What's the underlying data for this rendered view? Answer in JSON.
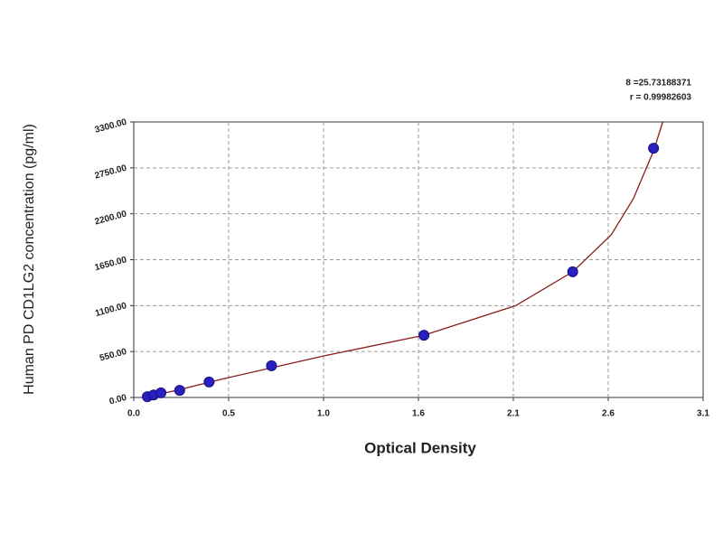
{
  "chart_data": {
    "type": "scatter",
    "x_label": "Optical Density",
    "y_label": "Human PD CD1LG2 concentration (pg/ml)",
    "annotations": [
      "8 =25.73188371",
      "r = 0.99982603"
    ],
    "xlim": [
      0,
      3.1
    ],
    "ylim": [
      0,
      3300
    ],
    "xticks": [
      {
        "value": 0,
        "label": "0.0"
      },
      {
        "value": 0.5167,
        "label": "0.5"
      },
      {
        "value": 1.0333,
        "label": "1.0"
      },
      {
        "value": 1.55,
        "label": "1.6"
      },
      {
        "value": 2.0667,
        "label": "2.1"
      },
      {
        "value": 2.5833,
        "label": "2.6"
      },
      {
        "value": 3.1,
        "label": "3.1"
      }
    ],
    "yticks": [
      {
        "value": 0,
        "label": "0.00"
      },
      {
        "value": 550,
        "label": "550.00"
      },
      {
        "value": 1100,
        "label": "1100.00"
      },
      {
        "value": 1650,
        "label": "1650.00"
      },
      {
        "value": 2200,
        "label": "2200.00"
      },
      {
        "value": 2750,
        "label": "2750.00"
      },
      {
        "value": 3300,
        "label": "3300.00"
      }
    ],
    "grid": true,
    "points": {
      "color": "#2a1fc0",
      "x": [
        0.074,
        0.108,
        0.148,
        0.25,
        0.41,
        0.75,
        1.58,
        2.39,
        2.83
      ],
      "y": [
        10,
        30,
        55,
        85,
        185,
        380,
        745,
        1505,
        2985
      ]
    },
    "fit": {
      "color": "#8b1a1a",
      "x": [
        0.074,
        0.25,
        0.52,
        1.04,
        1.58,
        2.08,
        2.39,
        2.6,
        2.72,
        2.83,
        2.88
      ],
      "y": [
        5,
        95,
        240,
        500,
        745,
        1100,
        1505,
        1950,
        2380,
        2950,
        3300
      ]
    }
  }
}
